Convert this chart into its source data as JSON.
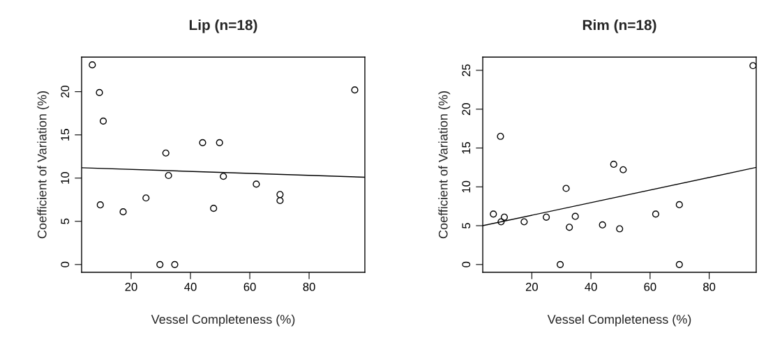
{
  "chart_data": [
    {
      "type": "scatter",
      "title": "Lip (n=18)",
      "xlabel": "Vessel Completeness (%)",
      "ylabel": "Coefficient of Variation (%)",
      "xlim": [
        3.3,
        98.8
      ],
      "ylim": [
        -0.9,
        24.0
      ],
      "xticks": [
        20,
        40,
        60,
        80
      ],
      "yticks": [
        0,
        5,
        10,
        15,
        20
      ],
      "series": [
        {
          "marker": "circle",
          "color": "#000000",
          "x": [
            6.9,
            9.3,
            10.6,
            9.6,
            17.3,
            25.0,
            29.7,
            31.7,
            32.6,
            34.7,
            44.1,
            47.8,
            49.8,
            51.1,
            62.2,
            70.2,
            70.2,
            95.4
          ],
          "values": [
            23.1,
            19.9,
            16.6,
            6.9,
            6.1,
            7.7,
            0,
            12.9,
            10.3,
            0,
            14.1,
            6.5,
            14.1,
            10.2,
            9.3,
            8.1,
            7.4,
            20.2
          ]
        },
        {
          "type": "line",
          "color": "#000000",
          "x": [
            3.3,
            98.8
          ],
          "values": [
            11.2,
            10.1
          ]
        }
      ]
    },
    {
      "type": "scatter",
      "title": "Rim (n=18)",
      "xlabel": "Vessel Completeness (%)",
      "ylabel": "Coefficient of Variation (%)",
      "xlim": [
        3.4,
        95.9
      ],
      "ylim": [
        -1.0,
        26.7
      ],
      "xticks": [
        20,
        40,
        60,
        80
      ],
      "yticks": [
        0,
        5,
        10,
        15,
        20,
        25
      ],
      "series": [
        {
          "marker": "circle",
          "color": "#000000",
          "x": [
            7.0,
            9.4,
            9.6,
            10.7,
            17.4,
            24.9,
            29.6,
            31.6,
            32.7,
            34.7,
            43.9,
            47.7,
            49.7,
            50.9,
            61.9,
            69.9,
            69.9,
            94.8
          ],
          "values": [
            6.5,
            16.5,
            5.5,
            6.1,
            5.5,
            6.1,
            0,
            9.8,
            4.8,
            6.2,
            5.1,
            12.9,
            4.6,
            12.2,
            6.5,
            7.7,
            0,
            25.6
          ]
        },
        {
          "type": "line",
          "color": "#000000",
          "x": [
            3.4,
            95.9
          ],
          "values": [
            5.0,
            12.5
          ]
        }
      ]
    }
  ]
}
